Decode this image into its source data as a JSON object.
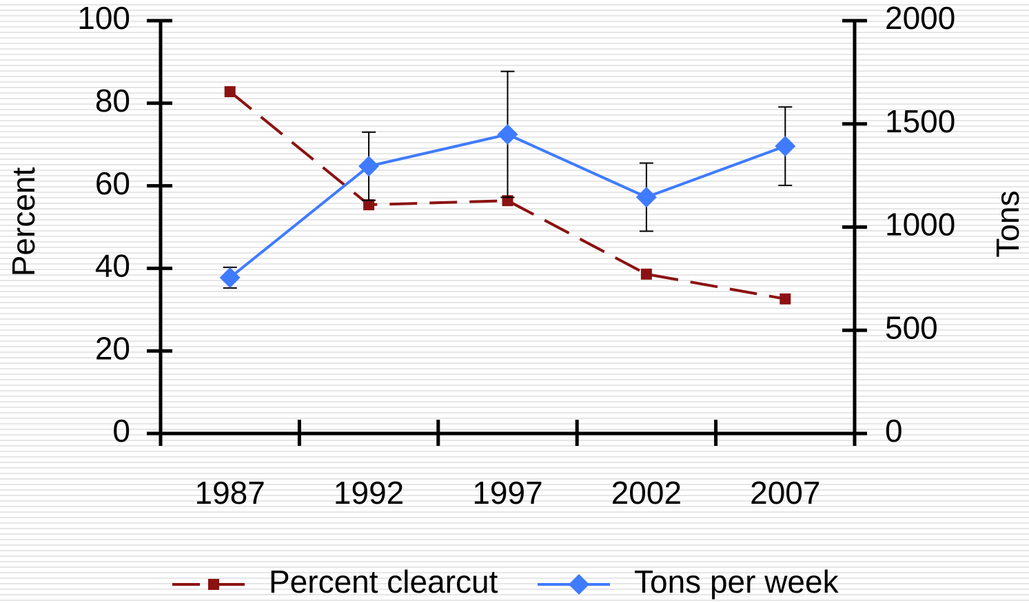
{
  "chart_data": {
    "type": "line",
    "categories": [
      "1987",
      "1992",
      "1997",
      "2002",
      "2007"
    ],
    "ylabel": "Percent",
    "y2label": "Tons",
    "ylim": [
      0,
      100
    ],
    "yticks": [
      0,
      20,
      40,
      60,
      80,
      100
    ],
    "y2lim": [
      0,
      2000
    ],
    "y2ticks": [
      0,
      500,
      1000,
      1500,
      2000
    ],
    "legend": "bottom",
    "series": [
      {
        "name": "Percent clearcut",
        "color": "#8b1212",
        "line_style": "dashed",
        "marker": "square",
        "values": [
          82.8,
          55.4,
          56.4,
          38.6,
          32.6
        ]
      },
      {
        "name": "Tons per week",
        "color": "#3f7bff",
        "line_style": "solid",
        "marker": "diamond",
        "axis": "y2",
        "values": [
          755,
          1295,
          1449,
          1145,
          1392
        ],
        "error": [
          50,
          165,
          305,
          165,
          190
        ]
      }
    ]
  }
}
